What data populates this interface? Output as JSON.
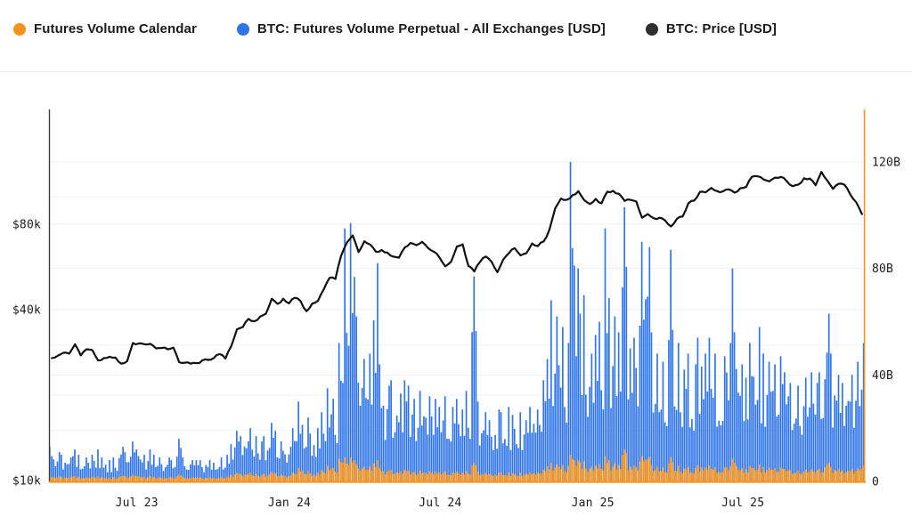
{
  "legend": {
    "items": [
      {
        "label": "Futures Volume Calendar",
        "color": "#F7931A"
      },
      {
        "label": "BTC: Futures Volume Perpetual - All Exchanges [USD]",
        "color": "#2E74EC"
      },
      {
        "label": "BTC: Price [USD]",
        "color": "#2E2E2E"
      }
    ]
  },
  "chart_data": {
    "type": "bar+line",
    "title": "",
    "start_date": "2023-03-17",
    "end_date": "2025-11-25",
    "step_days": 7,
    "grid": "horizontal-faint",
    "x_ticks": [
      {
        "label": "Jul 23",
        "date": "2023-07-01"
      },
      {
        "label": "Jan 24",
        "date": "2024-01-01"
      },
      {
        "label": "Jul 24",
        "date": "2024-07-01"
      },
      {
        "label": "Jan 25",
        "date": "2025-01-01"
      },
      {
        "label": "Jul 25",
        "date": "2025-07-01"
      }
    ],
    "left_axis": {
      "scale": "log",
      "unit": "USD",
      "ticks": [
        {
          "label": "$80k",
          "value": 80000
        },
        {
          "label": "$40k",
          "value": 40000
        },
        {
          "label": "$10k",
          "value": 10000
        }
      ],
      "minor_grid_values": [
        100000,
        30000,
        20000,
        15000
      ]
    },
    "right_axis": {
      "scale": "linear",
      "unit": "billions USD",
      "ticks": [
        {
          "label": "120B",
          "value": 120
        },
        {
          "label": "80B",
          "value": 80
        },
        {
          "label": "40B",
          "value": 40
        },
        {
          "label": "0",
          "value": 0
        }
      ]
    },
    "price": {
      "name": "BTC: Price [USD]",
      "axis": "left",
      "color": "#111111",
      "unit": "thousand USD",
      "values": [
        27.0,
        27.5,
        28.2,
        28.0,
        30.2,
        27.6,
        29.0,
        28.8,
        26.5,
        27.0,
        27.3,
        27.1,
        25.8,
        26.3,
        30.5,
        30.4,
        30.2,
        30.3,
        29.2,
        29.3,
        29.0,
        29.4,
        26.1,
        26.0,
        25.8,
        25.9,
        26.5,
        26.6,
        27.0,
        27.9,
        26.9,
        29.7,
        34.1,
        34.7,
        37.1,
        36.4,
        37.8,
        38.7,
        43.7,
        41.9,
        43.7,
        42.1,
        44.0,
        42.8,
        39.5,
        42.0,
        43.0,
        47.2,
        51.8,
        51.3,
        62.0,
        69.0,
        73.0,
        63.8,
        69.6,
        67.8,
        64.0,
        64.9,
        63.5,
        61.5,
        61.0,
        66.2,
        68.7,
        67.5,
        69.3,
        66.0,
        64.0,
        61.0,
        56.8,
        59.0,
        66.7,
        67.9,
        57.0,
        54.5,
        58.9,
        61.5,
        58.9,
        54.2,
        60.0,
        63.3,
        65.8,
        62.1,
        63.2,
        68.4,
        67.0,
        69.5,
        76.5,
        91.0,
        98.5,
        97.5,
        101.2,
        104.5,
        97.2,
        94.2,
        98.2,
        94.7,
        104.1,
        104.8,
        102.4,
        96.6,
        97.5,
        96.2,
        84.3,
        86.8,
        84.0,
        84.3,
        82.4,
        78.5,
        83.4,
        85.1,
        94.7,
        96.9,
        104.0,
        103.5,
        107.3,
        104.6,
        104.4,
        106.1,
        103.3,
        107.1,
        108.2,
        117.5,
        117.9,
        115.0,
        113.2,
        116.7,
        117.4,
        113.5,
        108.8,
        110.2,
        116.1,
        115.8,
        109.7,
        122.2,
        114.0,
        106.5,
        111.0,
        110.1,
        101.7,
        95.6,
        86.8
      ]
    },
    "perp": {
      "name": "BTC: Futures Volume Perpetual - All Exchanges [USD]",
      "axis": "right",
      "color": "#2E74EC",
      "unit": "billions USD, weekly peak daily volume",
      "values": [
        13,
        11,
        10,
        9,
        12,
        10,
        9,
        10,
        12,
        9,
        8,
        9,
        13,
        11,
        15,
        12,
        10,
        12,
        10,
        9,
        9,
        8,
        16,
        9,
        8,
        8,
        8,
        8,
        7,
        9,
        10,
        14,
        19,
        17,
        20,
        17,
        15,
        17,
        22,
        19,
        15,
        13,
        20,
        30,
        24,
        18,
        20,
        26,
        35,
        31,
        52,
        95,
        97,
        62,
        46,
        48,
        82,
        44,
        36,
        38,
        33,
        38,
        36,
        31,
        34,
        32,
        31,
        28,
        32,
        28,
        31,
        27,
        34,
        77,
        30,
        26,
        23,
        27,
        26,
        28,
        25,
        26,
        23,
        28,
        27,
        38,
        68,
        62,
        58,
        52,
        120,
        80,
        70,
        48,
        55,
        60,
        95,
        62,
        56,
        103,
        50,
        54,
        90,
        88,
        56,
        48,
        45,
        87,
        52,
        42,
        48,
        44,
        54,
        48,
        54,
        48,
        47,
        52,
        80,
        44,
        39,
        52,
        58,
        48,
        45,
        44,
        47,
        41,
        37,
        36,
        39,
        41,
        37,
        41,
        63,
        48,
        40,
        37,
        40,
        45,
        52
      ]
    },
    "cal": {
      "name": "Futures Volume Calendar",
      "axis": "right",
      "color": "#F7931A",
      "unit": "billions USD, weekly peak daily volume",
      "values": [
        2.0,
        1.8,
        1.7,
        1.6,
        2.0,
        1.7,
        1.6,
        1.7,
        2.0,
        1.6,
        1.5,
        1.6,
        2.2,
        1.9,
        2.5,
        2.0,
        1.8,
        2.0,
        1.7,
        1.6,
        1.6,
        1.5,
        2.6,
        1.7,
        1.5,
        1.5,
        1.5,
        1.5,
        1.4,
        1.7,
        1.8,
        2.4,
        3.2,
        2.8,
        3.3,
        2.8,
        2.5,
        2.8,
        3.6,
        3.1,
        2.5,
        2.2,
        3.3,
        5.0,
        4.0,
        3.0,
        3.3,
        4.3,
        5.8,
        5.1,
        8.5,
        9.0,
        9.0,
        6.5,
        5.5,
        5.5,
        8.0,
        5.0,
        4.2,
        4.4,
        3.9,
        4.4,
        4.2,
        3.7,
        4.0,
        3.8,
        3.7,
        3.4,
        3.8,
        3.4,
        3.7,
        3.3,
        4.0,
        7.0,
        3.6,
        3.2,
        2.9,
        3.3,
        3.2,
        3.4,
        3.1,
        3.2,
        2.9,
        3.4,
        3.3,
        4.4,
        7.0,
        6.5,
        6.2,
        5.8,
        10.0,
        8.0,
        7.5,
        5.5,
        6.0,
        6.5,
        9.5,
        6.8,
        6.2,
        12.0,
        5.5,
        6.0,
        9.5,
        9.3,
        6.2,
        5.5,
        5.2,
        9.2,
        5.8,
        4.8,
        5.4,
        5.0,
        6.0,
        5.4,
        6.0,
        5.4,
        5.3,
        5.8,
        8.5,
        5.0,
        4.5,
        5.8,
        6.4,
        5.4,
        5.1,
        5.0,
        5.3,
        4.7,
        4.2,
        4.1,
        4.4,
        4.6,
        4.2,
        4.6,
        7.0,
        5.4,
        4.5,
        4.2,
        4.5,
        5.0,
        6.0
      ]
    },
    "axis_line_colors": {
      "left": "#3D3D3D",
      "bottom": "#F7931A",
      "right": "#F7931A"
    },
    "grid_color": "#F1F1F1"
  }
}
